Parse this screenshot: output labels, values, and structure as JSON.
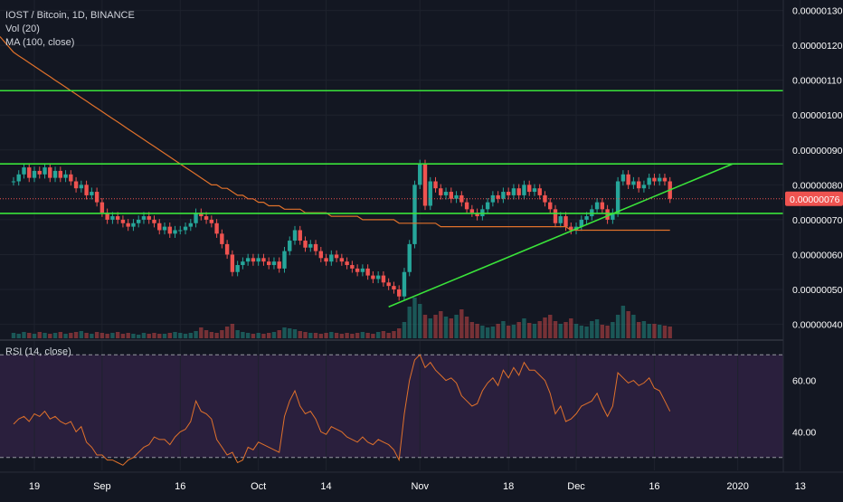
{
  "header": {
    "symbol_line": "IOST / Bitcoin, 1D, BINANCE",
    "volume_label": "Vol (20)",
    "ma_label": "MA (100, close)",
    "rsi_label": "RSI (14, close)"
  },
  "price_axis": {
    "ticks": [
      {
        "value": 1.3e-06,
        "label": "0.00000130"
      },
      {
        "value": 1.2e-06,
        "label": "0.00000120"
      },
      {
        "value": 1.1e-06,
        "label": "0.00000110"
      },
      {
        "value": 1e-06,
        "label": "0.00000100"
      },
      {
        "value": 9e-07,
        "label": "0.00000090"
      },
      {
        "value": 8e-07,
        "label": "0.00000080"
      },
      {
        "value": 7e-07,
        "label": "0.00000070"
      },
      {
        "value": 6e-07,
        "label": "0.00000060"
      },
      {
        "value": 5e-07,
        "label": "0.00000050"
      },
      {
        "value": 4e-07,
        "label": "0.00000040"
      }
    ],
    "last_price": 7.6e-07,
    "last_price_label": "0.00000076",
    "last_price_color": "#ef5350"
  },
  "rsi_axis": {
    "ticks": [
      {
        "value": 60,
        "label": "60.00"
      },
      {
        "value": 40,
        "label": "40.00"
      }
    ],
    "upper_band": 70,
    "lower_band": 30
  },
  "time_axis": {
    "ticks": [
      {
        "date": "2019-08-19",
        "label": "19"
      },
      {
        "date": "2019-09-01",
        "label": "Sep"
      },
      {
        "date": "2019-09-16",
        "label": "16"
      },
      {
        "date": "2019-10-01",
        "label": "Oct"
      },
      {
        "date": "2019-10-14",
        "label": "14"
      },
      {
        "date": "2019-11-01",
        "label": "Nov"
      },
      {
        "date": "2019-11-18",
        "label": "18"
      },
      {
        "date": "2019-12-01",
        "label": "Dec"
      },
      {
        "date": "2019-12-16",
        "label": "16"
      },
      {
        "date": "2020-01-01",
        "label": "2020"
      },
      {
        "date": "2020-01-13",
        "label": "13"
      }
    ]
  },
  "colors": {
    "background": "#131722",
    "up": "#26a69a",
    "down": "#ef5350",
    "ma": "#e0712b",
    "rsi": "#e0712b",
    "rsi_band": "#2a1f3d",
    "trendline": "#3ae43a",
    "axis_text": "#ffffff"
  },
  "chart_data": [
    {
      "type": "candlestick",
      "first_date": "2019-08-15",
      "ylim": [
        3.6e-07,
        1.33e-06
      ],
      "closes": [
        8.1e-07,
        8.3e-07,
        8.5e-07,
        8.2e-07,
        8.4e-07,
        8.3e-07,
        8.5e-07,
        8.2e-07,
        8.4e-07,
        8.2e-07,
        8.3e-07,
        8.1e-07,
        7.9e-07,
        8e-07,
        7.7e-07,
        7.8e-07,
        7.5e-07,
        7.2e-07,
        7e-07,
        7.1e-07,
        7e-07,
        6.9e-07,
        6.8e-07,
        6.9e-07,
        7e-07,
        7.1e-07,
        7e-07,
        6.9e-07,
        6.7e-07,
        6.8e-07,
        6.6e-07,
        6.7e-07,
        6.7e-07,
        6.8e-07,
        6.9e-07,
        7.2e-07,
        7.1e-07,
        7e-07,
        6.9e-07,
        6.6e-07,
        6.3e-07,
        6e-07,
        5.5e-07,
        5.7e-07,
        5.8e-07,
        5.9e-07,
        5.8e-07,
        5.9e-07,
        5.8e-07,
        5.7e-07,
        5.8e-07,
        5.6e-07,
        6.1e-07,
        6.4e-07,
        6.7e-07,
        6.4e-07,
        6.2e-07,
        6.3e-07,
        6.1e-07,
        5.9e-07,
        5.8e-07,
        6e-07,
        5.9e-07,
        5.8e-07,
        5.7e-07,
        5.6e-07,
        5.5e-07,
        5.6e-07,
        5.4e-07,
        5.3e-07,
        5.4e-07,
        5.2e-07,
        5.1e-07,
        5e-07,
        4.8e-07,
        5.5e-07,
        6.3e-07,
        8e-07,
        8.6e-07,
        7.4e-07,
        8.1e-07,
        7.9e-07,
        7.7e-07,
        7.8e-07,
        7.6e-07,
        7.7e-07,
        7.5e-07,
        7.3e-07,
        7.2e-07,
        7.1e-07,
        7.3e-07,
        7.5e-07,
        7.7e-07,
        7.6e-07,
        7.8e-07,
        7.7e-07,
        7.9e-07,
        7.7e-07,
        8e-07,
        7.8e-07,
        7.9e-07,
        7.7e-07,
        7.5e-07,
        7.3e-07,
        6.9e-07,
        7.1e-07,
        6.8e-07,
        6.7e-07,
        6.8e-07,
        7e-07,
        7.1e-07,
        7.3e-07,
        7.5e-07,
        7.3e-07,
        7e-07,
        7.2e-07,
        8.1e-07,
        8.3e-07,
        8e-07,
        8.1e-07,
        7.9e-07,
        8e-07,
        8.2e-07,
        8.1e-07,
        8.2e-07,
        8.1e-07,
        7.6e-07
      ],
      "volumes": [
        0.6,
        0.5,
        0.7,
        0.6,
        0.5,
        0.7,
        0.6,
        0.5,
        0.6,
        0.7,
        0.5,
        0.6,
        0.7,
        0.8,
        0.6,
        0.5,
        0.7,
        0.6,
        0.5,
        0.6,
        0.7,
        0.5,
        0.6,
        0.5,
        0.4,
        0.6,
        0.5,
        0.6,
        0.5,
        0.5,
        0.6,
        0.7,
        0.6,
        0.5,
        0.6,
        0.8,
        1.2,
        0.9,
        0.7,
        0.6,
        0.9,
        1.3,
        1.6,
        0.9,
        0.7,
        0.6,
        0.5,
        0.6,
        0.5,
        0.6,
        0.7,
        0.9,
        1.2,
        1.1,
        1.0,
        0.8,
        0.7,
        0.6,
        0.6,
        0.5,
        0.6,
        0.7,
        0.6,
        0.5,
        0.6,
        0.5,
        0.6,
        0.7,
        0.6,
        0.5,
        0.7,
        0.8,
        0.6,
        0.8,
        1.1,
        1.8,
        3.5,
        4.5,
        3.8,
        2.6,
        2.2,
        2.6,
        3.0,
        2.4,
        2.2,
        2.6,
        3.2,
        2.4,
        1.8,
        1.6,
        1.4,
        1.2,
        1.3,
        1.6,
        1.9,
        1.4,
        1.5,
        1.8,
        2.2,
        1.7,
        1.6,
        1.9,
        2.3,
        2.6,
        1.9,
        1.6,
        1.8,
        2.2,
        1.6,
        1.4,
        1.3,
        1.9,
        2.1,
        1.5,
        1.4,
        1.8,
        2.6,
        3.6,
        3.0,
        2.6,
        1.8,
        1.9,
        1.6,
        1.6,
        1.5,
        1.4,
        1.3
      ],
      "ma100_closes": [
        1.18e-06,
        1.17e-06,
        1.16e-06,
        1.15e-06,
        1.14e-06,
        1.13e-06,
        1.12e-06,
        1.11e-06,
        1.1e-06,
        1.09e-06,
        1.08e-06,
        1.07e-06,
        1.06e-06,
        1.05e-06,
        1.04e-06,
        1.03e-06,
        1.02e-06,
        1.01e-06,
        1e-06,
        9.9e-07,
        9.8e-07,
        9.7e-07,
        9.6e-07,
        9.5e-07,
        9.4e-07,
        9.3e-07,
        9.2e-07,
        9.1e-07,
        9e-07,
        8.9e-07,
        8.8e-07,
        8.7e-07,
        8.6e-07,
        8.5e-07,
        8.4e-07,
        8.3e-07,
        8.2e-07,
        8.1e-07,
        8e-07,
        8e-07,
        7.9e-07,
        7.9e-07,
        7.8e-07,
        7.7e-07,
        7.7e-07,
        7.6e-07,
        7.6e-07,
        7.5e-07,
        7.5e-07,
        7.4e-07,
        7.4e-07,
        7.4e-07,
        7.3e-07,
        7.3e-07,
        7.3e-07,
        7.3e-07,
        7.2e-07,
        7.2e-07,
        7.2e-07,
        7.2e-07,
        7.2e-07,
        7.1e-07,
        7.1e-07,
        7.1e-07,
        7.1e-07,
        7.1e-07,
        7.1e-07,
        7e-07,
        7e-07,
        7e-07,
        7e-07,
        7e-07,
        7e-07,
        7e-07,
        6.9e-07,
        6.9e-07,
        6.9e-07,
        6.9e-07,
        6.9e-07,
        6.9e-07,
        6.9e-07,
        6.9e-07,
        6.8e-07,
        6.8e-07,
        6.8e-07,
        6.8e-07,
        6.8e-07,
        6.8e-07,
        6.8e-07,
        6.8e-07,
        6.8e-07,
        6.8e-07,
        6.8e-07,
        6.8e-07,
        6.8e-07,
        6.8e-07,
        6.8e-07,
        6.8e-07,
        6.8e-07,
        6.8e-07,
        6.8e-07,
        6.8e-07,
        6.8e-07,
        6.8e-07,
        6.8e-07,
        6.8e-07,
        6.8e-07,
        6.7e-07,
        6.7e-07,
        6.7e-07,
        6.7e-07,
        6.7e-07,
        6.7e-07,
        6.7e-07,
        6.7e-07,
        6.7e-07,
        6.7e-07,
        6.7e-07,
        6.7e-07,
        6.7e-07,
        6.7e-07,
        6.7e-07,
        6.7e-07,
        6.7e-07,
        6.7e-07,
        6.7e-07,
        6.7e-07
      ],
      "ma_start_index": 0,
      "hlines": [
        1.07e-06,
        8.6e-07,
        7.18e-07
      ],
      "trendline": [
        [
          "2019-10-26",
          4.5e-07
        ],
        [
          "2019-12-31",
          8.6e-07
        ]
      ]
    },
    {
      "type": "line",
      "title": "RSI (14, close)",
      "first_date": "2019-08-15",
      "ylim": [
        25,
        75
      ],
      "values": [
        43,
        45,
        46,
        44,
        47,
        46,
        48,
        45,
        46,
        44,
        43,
        44,
        40,
        42,
        36,
        34,
        31,
        31,
        29,
        29,
        28,
        27,
        29,
        30,
        32,
        34,
        35,
        38,
        37,
        37,
        35,
        38,
        40,
        41,
        44,
        52,
        48,
        47,
        45,
        37,
        34,
        31,
        32,
        28,
        29,
        34,
        33,
        36,
        35,
        34,
        33,
        32,
        46,
        52,
        56,
        50,
        47,
        48,
        45,
        40,
        39,
        42,
        41,
        40,
        38,
        37,
        36,
        38,
        36,
        35,
        37,
        36,
        35,
        33,
        29,
        47,
        60,
        68,
        70,
        65,
        67,
        64,
        62,
        60,
        61,
        59,
        54,
        52,
        50,
        51,
        56,
        59,
        61,
        58,
        64,
        61,
        65,
        62,
        67,
        64,
        64,
        62,
        60,
        55,
        47,
        50,
        44,
        45,
        47,
        50,
        51,
        52,
        55,
        50,
        46,
        50,
        63,
        61,
        59,
        60,
        58,
        59,
        61,
        57,
        56,
        52,
        48
      ]
    }
  ]
}
